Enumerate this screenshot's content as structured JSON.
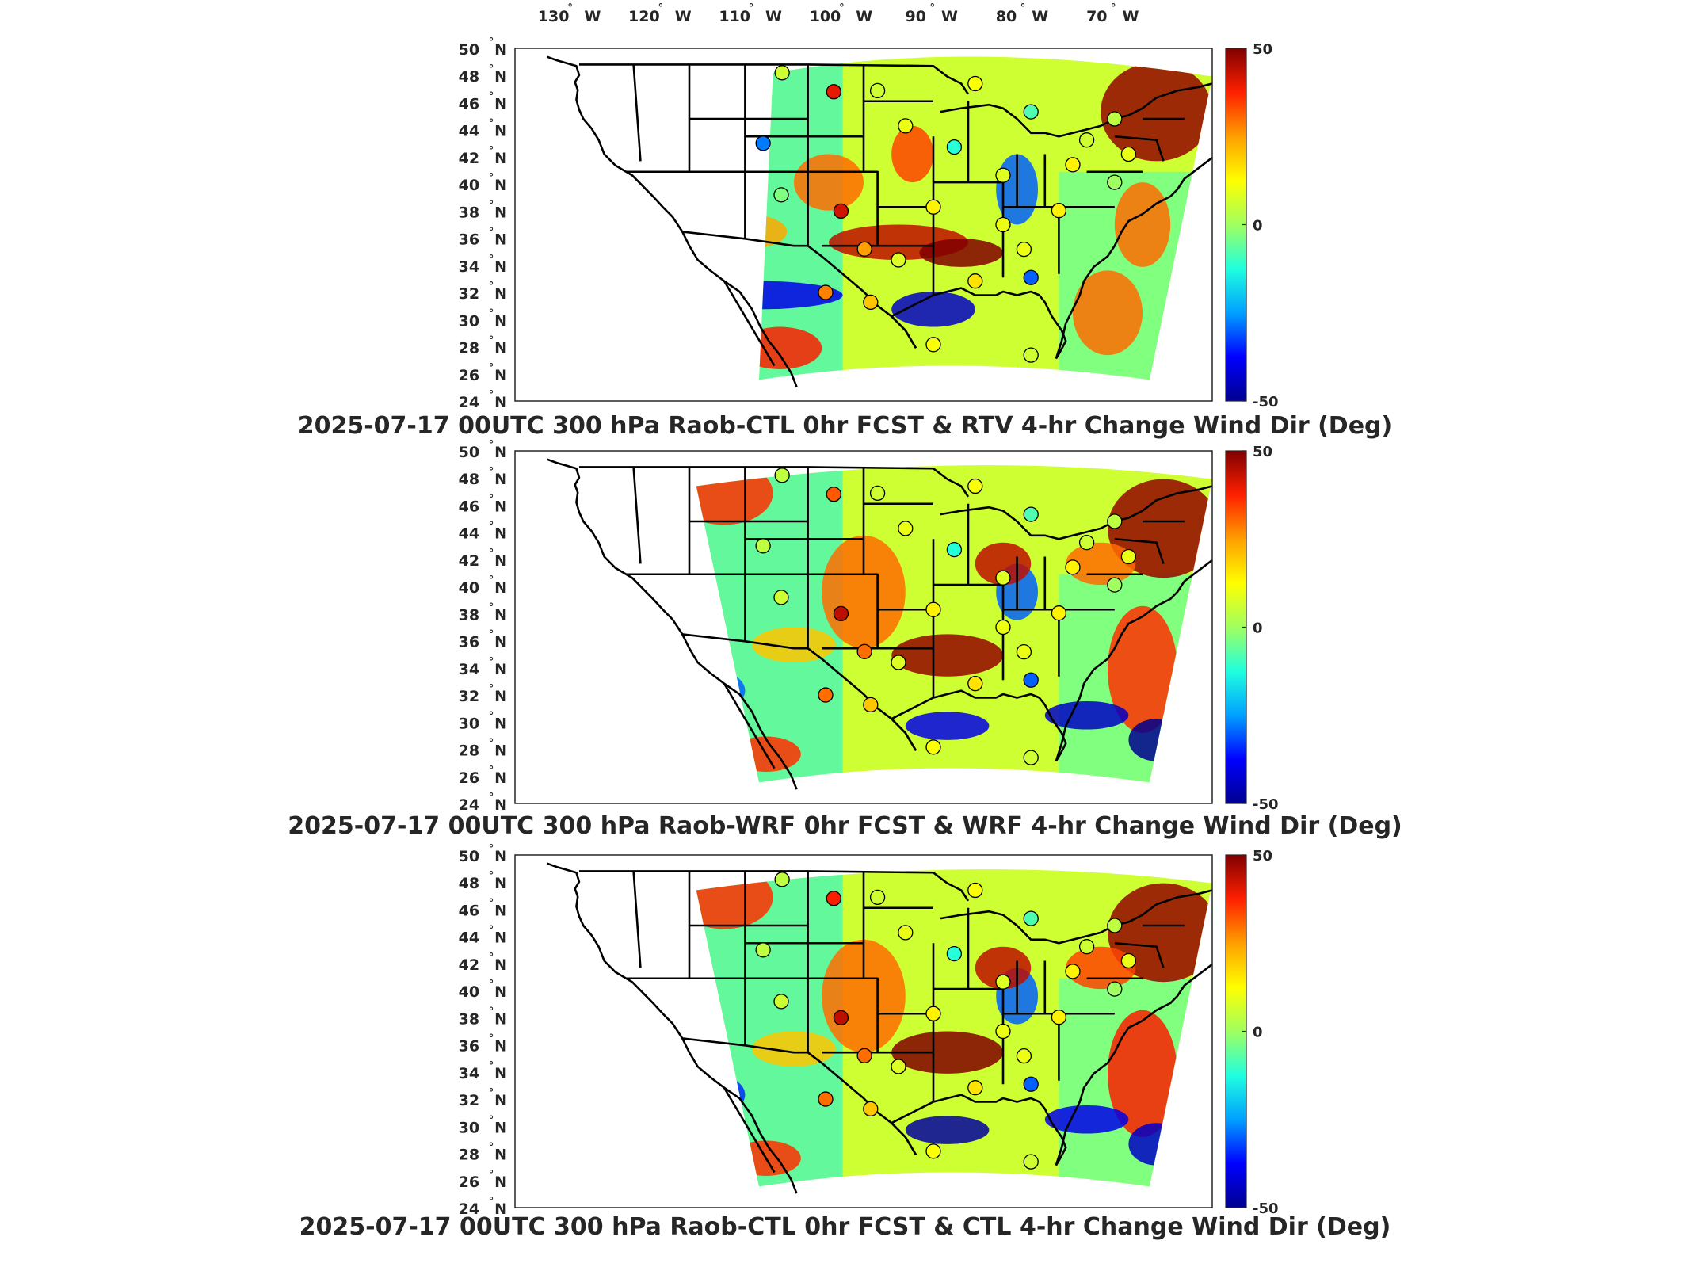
{
  "lon_ticks": [
    "130",
    "120",
    "110",
    "100",
    "90",
    "80",
    "70"
  ],
  "lon_hemisphere": "W",
  "lat_ticks": [
    "50",
    "48",
    "46",
    "44",
    "42",
    "40",
    "38",
    "36",
    "34",
    "32",
    "30",
    "28",
    "26",
    "24"
  ],
  "lat_hemisphere": "N",
  "degree_symbol": "°",
  "colorbar": {
    "max_label": "50",
    "mid_label": "0",
    "min_label": "-50",
    "colors": [
      "#00008f",
      "#0000ff",
      "#00a0ff",
      "#20ffdf",
      "#a0ff60",
      "#ffff00",
      "#ff9f00",
      "#ff2000",
      "#800000"
    ]
  },
  "panels": [
    {
      "id": "rtv",
      "title": "2025-07-17 00UTC 300 hPa Raob-CTL 0hr FCST & RTV 4-hr Change Wind Dir (Deg)",
      "stations": [
        {
          "lon": -106.5,
          "lat": 48.2,
          "v": 6
        },
        {
          "lon": -100.8,
          "lat": 46.8,
          "v": 40
        },
        {
          "lon": -108.6,
          "lat": 43.0,
          "v": -28
        },
        {
          "lon": -106.6,
          "lat": 39.2,
          "v": -3
        },
        {
          "lon": -100.0,
          "lat": 38.0,
          "v": 42
        },
        {
          "lon": -97.4,
          "lat": 35.2,
          "v": 25
        },
        {
          "lon": -101.7,
          "lat": 32.0,
          "v": 28
        }
      ]
    },
    {
      "id": "wrf",
      "title": "2025-07-17 00UTC 300 hPa Raob-WRF 0hr FCST & WRF 4-hr Change Wind Dir (Deg)",
      "stations": [
        {
          "lon": -106.5,
          "lat": 48.2,
          "v": 4
        },
        {
          "lon": -100.8,
          "lat": 46.8,
          "v": 32
        },
        {
          "lon": -108.6,
          "lat": 43.0,
          "v": 4
        },
        {
          "lon": -106.6,
          "lat": 39.2,
          "v": 6
        },
        {
          "lon": -100.0,
          "lat": 38.0,
          "v": 44
        },
        {
          "lon": -97.4,
          "lat": 35.2,
          "v": 30
        },
        {
          "lon": -101.7,
          "lat": 32.0,
          "v": 30
        }
      ]
    },
    {
      "id": "ctl",
      "title": "2025-07-17 00UTC 300 hPa Raob-CTL 0hr FCST & CTL 4-hr Change Wind Dir (Deg)",
      "stations": [
        {
          "lon": -106.5,
          "lat": 48.2,
          "v": 4
        },
        {
          "lon": -100.8,
          "lat": 46.8,
          "v": 38
        },
        {
          "lon": -108.6,
          "lat": 43.0,
          "v": 4
        },
        {
          "lon": -106.6,
          "lat": 39.2,
          "v": 6
        },
        {
          "lon": -100.0,
          "lat": 38.0,
          "v": 44
        },
        {
          "lon": -97.4,
          "lat": 35.2,
          "v": 30
        },
        {
          "lon": -101.7,
          "lat": 32.0,
          "v": 30
        }
      ]
    }
  ]
}
